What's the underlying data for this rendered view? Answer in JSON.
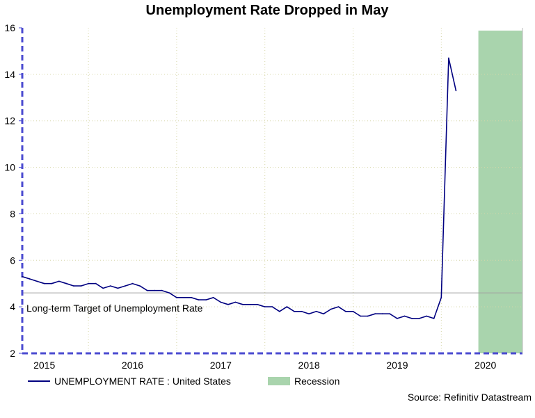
{
  "chart_data": {
    "type": "line",
    "title": "Unemployment Rate Dropped in May",
    "xlabel": "",
    "ylabel": "",
    "ylim": [
      2,
      16
    ],
    "yticks": [
      2,
      4,
      6,
      8,
      10,
      12,
      14,
      16
    ],
    "xlim": [
      2014.75,
      2020.42
    ],
    "xticks": [
      {
        "label": "2015",
        "x": 2015.0
      },
      {
        "label": "2016",
        "x": 2016.0
      },
      {
        "label": "2017",
        "x": 2017.0
      },
      {
        "label": "2018",
        "x": 2018.0
      },
      {
        "label": "2019",
        "x": 2019.0
      },
      {
        "label": "2020",
        "x": 2020.0
      }
    ],
    "year_boundaries": [
      2015.5,
      2016.5,
      2017.5,
      2018.5,
      2019.5
    ],
    "series": [
      {
        "name": "UNEMPLOYMENT RATE : United States",
        "color": "#000080",
        "start": 2014.75,
        "step": 0.08333,
        "values": [
          5.3,
          5.2,
          5.1,
          5.0,
          5.0,
          5.1,
          5.0,
          4.9,
          4.9,
          5.0,
          5.0,
          4.8,
          4.9,
          4.8,
          4.9,
          5.0,
          4.9,
          4.7,
          4.7,
          4.7,
          4.6,
          4.4,
          4.4,
          4.4,
          4.3,
          4.3,
          4.4,
          4.2,
          4.1,
          4.2,
          4.1,
          4.1,
          4.1,
          4.0,
          4.0,
          3.8,
          4.0,
          3.8,
          3.8,
          3.7,
          3.8,
          3.7,
          3.9,
          4.0,
          3.8,
          3.8,
          3.6,
          3.6,
          3.7,
          3.7,
          3.7,
          3.5,
          3.6,
          3.5,
          3.5,
          3.6,
          3.5,
          4.4,
          14.7,
          13.3
        ]
      }
    ],
    "target_line": {
      "label": "Long-term Target of Unemployment Rate",
      "value": 4.6,
      "color": "#a0a0a0"
    },
    "recession": {
      "label": "Recession",
      "start": 2019.92,
      "end": 2020.42,
      "color": "#a9d4ad"
    },
    "legend": [
      {
        "label": "UNEMPLOYMENT RATE : United States",
        "kind": "line",
        "color": "#000080"
      },
      {
        "label": "Recession",
        "kind": "box",
        "color": "#a9d4ad"
      }
    ],
    "source": "Source: Refinitiv Datastream"
  }
}
